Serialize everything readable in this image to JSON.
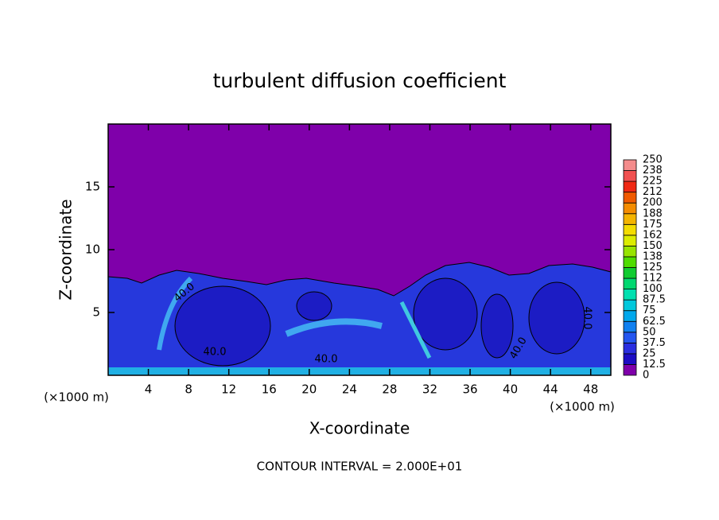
{
  "chart_data": {
    "type": "contour",
    "title": "turbulent diffusion coefficient",
    "x_label": "X-coordinate",
    "y_label": "Z-coordinate",
    "x_unit": "(×1000 m)",
    "y_unit": "(×1000 m)",
    "xlim": [
      0,
      50
    ],
    "xticks": [
      4,
      8,
      12,
      16,
      20,
      24,
      28,
      32,
      36,
      40,
      44,
      48
    ],
    "ylim": [
      0,
      20
    ],
    "yticks": [
      5,
      10,
      15
    ],
    "footer": "CONTOUR INTERVAL = 2.000E+01",
    "contour_labels": [
      "40.0",
      "40.0",
      "40.0",
      "40.0",
      "40.0"
    ],
    "colorbar": {
      "levels": [
        0,
        12.5,
        25,
        37.5,
        50,
        62.5,
        75,
        87.5,
        100,
        112,
        125,
        138,
        150,
        162,
        175,
        188,
        200,
        212,
        225,
        238,
        250
      ],
      "colors": [
        "#7f00aa",
        "#1c0cc4",
        "#2a2ee0",
        "#2456f0",
        "#1080f0",
        "#00a8ec",
        "#00c8dc",
        "#00e0b0",
        "#00d870",
        "#10cc30",
        "#50dc00",
        "#98e400",
        "#dcec00",
        "#f4dc00",
        "#f4b400",
        "#f48c00",
        "#f05a00",
        "#f02814",
        "#f05050",
        "#f48c8c"
      ]
    }
  }
}
